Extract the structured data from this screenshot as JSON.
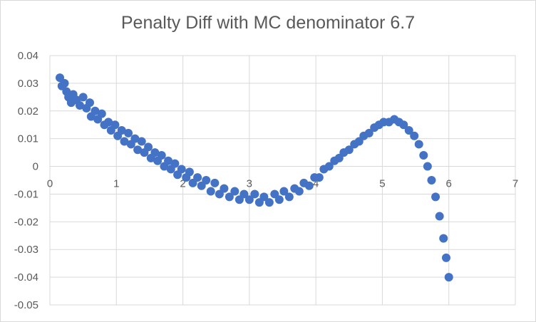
{
  "chart_data": {
    "type": "scatter",
    "title": "Penalty Diff with MC denominator 6.7",
    "xlabel": "",
    "ylabel": "",
    "xlim": [
      0,
      7
    ],
    "ylim": [
      -0.05,
      0.04
    ],
    "x_ticks": [
      0,
      1,
      2,
      3,
      4,
      5,
      6,
      7
    ],
    "y_ticks": [
      0.04,
      0.03,
      0.02,
      0.01,
      0,
      -0.01,
      -0.02,
      -0.03,
      -0.04,
      -0.05
    ],
    "x_tick_labels": [
      "0",
      "1",
      "2",
      "3",
      "4",
      "5",
      "6",
      "7"
    ],
    "y_tick_labels": [
      "0.04",
      "0.03",
      "0.02",
      "0.01",
      "0",
      "-0.01",
      "-0.02",
      "-0.03",
      "-0.04",
      "-0.05"
    ],
    "grid": true,
    "legend": "none",
    "marker_color": "#4472c4",
    "series": [
      {
        "points": [
          [
            0.15,
            0.032
          ],
          [
            0.18,
            0.029
          ],
          [
            0.22,
            0.03
          ],
          [
            0.25,
            0.027
          ],
          [
            0.28,
            0.025
          ],
          [
            0.32,
            0.023
          ],
          [
            0.35,
            0.026
          ],
          [
            0.4,
            0.024
          ],
          [
            0.45,
            0.022
          ],
          [
            0.5,
            0.025
          ],
          [
            0.55,
            0.021
          ],
          [
            0.6,
            0.023
          ],
          [
            0.62,
            0.018
          ],
          [
            0.68,
            0.02
          ],
          [
            0.72,
            0.017
          ],
          [
            0.78,
            0.019
          ],
          [
            0.82,
            0.015
          ],
          [
            0.88,
            0.016
          ],
          [
            0.92,
            0.013
          ],
          [
            0.98,
            0.015
          ],
          [
            1.02,
            0.011
          ],
          [
            1.08,
            0.013
          ],
          [
            1.12,
            0.009
          ],
          [
            1.18,
            0.012
          ],
          [
            1.22,
            0.008
          ],
          [
            1.28,
            0.01
          ],
          [
            1.32,
            0.006
          ],
          [
            1.38,
            0.009
          ],
          [
            1.42,
            0.005
          ],
          [
            1.48,
            0.007
          ],
          [
            1.52,
            0.003
          ],
          [
            1.58,
            0.005
          ],
          [
            1.62,
            0.002
          ],
          [
            1.68,
            0.004
          ],
          [
            1.72,
            0.0
          ],
          [
            1.78,
            0.002
          ],
          [
            1.82,
            -0.001
          ],
          [
            1.88,
            0.001
          ],
          [
            1.92,
            -0.003
          ],
          [
            1.98,
            -0.001
          ],
          [
            2.05,
            -0.004
          ],
          [
            2.1,
            -0.002
          ],
          [
            2.15,
            -0.006
          ],
          [
            2.22,
            -0.004
          ],
          [
            2.28,
            -0.007
          ],
          [
            2.35,
            -0.005
          ],
          [
            2.42,
            -0.009
          ],
          [
            2.48,
            -0.006
          ],
          [
            2.55,
            -0.01
          ],
          [
            2.62,
            -0.008
          ],
          [
            2.7,
            -0.011
          ],
          [
            2.78,
            -0.009
          ],
          [
            2.85,
            -0.012
          ],
          [
            2.92,
            -0.01
          ],
          [
            3.0,
            -0.012
          ],
          [
            3.08,
            -0.01
          ],
          [
            3.15,
            -0.013
          ],
          [
            3.22,
            -0.011
          ],
          [
            3.3,
            -0.013
          ],
          [
            3.38,
            -0.01
          ],
          [
            3.45,
            -0.012
          ],
          [
            3.52,
            -0.009
          ],
          [
            3.6,
            -0.011
          ],
          [
            3.68,
            -0.008
          ],
          [
            3.75,
            -0.009
          ],
          [
            3.82,
            -0.006
          ],
          [
            3.9,
            -0.007
          ],
          [
            3.98,
            -0.004
          ],
          [
            4.05,
            -0.004
          ],
          [
            4.12,
            -0.001
          ],
          [
            4.2,
            0.0
          ],
          [
            4.28,
            0.002
          ],
          [
            4.35,
            0.003
          ],
          [
            4.42,
            0.005
          ],
          [
            4.5,
            0.006
          ],
          [
            4.58,
            0.008
          ],
          [
            4.65,
            0.009
          ],
          [
            4.72,
            0.011
          ],
          [
            4.8,
            0.012
          ],
          [
            4.88,
            0.014
          ],
          [
            4.95,
            0.015
          ],
          [
            5.02,
            0.016
          ],
          [
            5.1,
            0.016
          ],
          [
            5.18,
            0.017
          ],
          [
            5.25,
            0.016
          ],
          [
            5.32,
            0.015
          ],
          [
            5.4,
            0.013
          ],
          [
            5.48,
            0.011
          ],
          [
            5.55,
            0.008
          ],
          [
            5.62,
            0.004
          ],
          [
            5.68,
            0.0
          ],
          [
            5.74,
            -0.005
          ],
          [
            5.8,
            -0.011
          ],
          [
            5.86,
            -0.018
          ],
          [
            5.92,
            -0.026
          ],
          [
            5.96,
            -0.033
          ],
          [
            6.0,
            -0.04
          ]
        ]
      }
    ]
  }
}
